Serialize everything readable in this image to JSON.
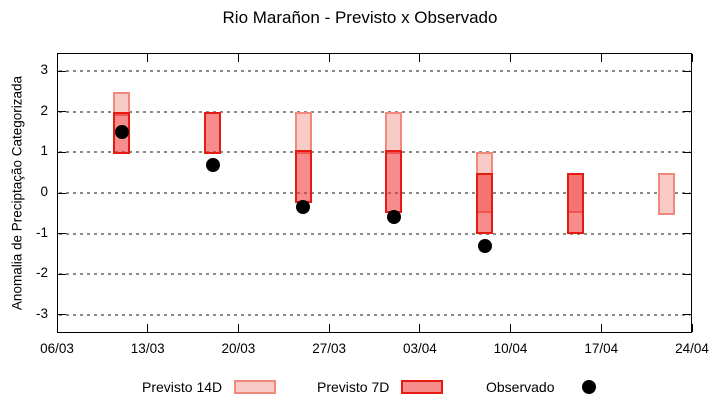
{
  "chart_data": {
    "type": "bar",
    "title": "Rio Marañon - Previsto x Observado",
    "ylabel": "Anomalia de Preciptação Categorizada",
    "xlabel": "",
    "ylim": [
      -3.45,
      3.45
    ],
    "yticks": [
      3,
      2,
      1,
      0,
      -1,
      -2,
      -3
    ],
    "x_total_days": 49,
    "xticks": [
      {
        "label": "06/03",
        "day": 0
      },
      {
        "label": "13/03",
        "day": 7
      },
      {
        "label": "20/03",
        "day": 14
      },
      {
        "label": "27/03",
        "day": 21
      },
      {
        "label": "03/04",
        "day": 28
      },
      {
        "label": "10/04",
        "day": 35
      },
      {
        "label": "17/04",
        "day": 42
      },
      {
        "label": "24/04",
        "day": 49
      }
    ],
    "grid": "horizontal-dashed",
    "legend_position": "bottom",
    "series": [
      {
        "name": "Previsto 14D",
        "type": "range-bar",
        "points": [
          {
            "day": 5,
            "low": 1.95,
            "high": 2.45
          },
          {
            "day": 19,
            "low": 1.0,
            "high": 1.95
          },
          {
            "day": 26,
            "low": 1.0,
            "high": 1.95
          },
          {
            "day": 33,
            "low": -0.45,
            "high": 0.95
          },
          {
            "day": 40,
            "low": -0.45,
            "high": 0.45
          },
          {
            "day": 47,
            "low": -0.5,
            "high": 0.45
          }
        ]
      },
      {
        "name": "Previsto 7D",
        "type": "range-bar",
        "points": [
          {
            "day": 5,
            "low": 1.0,
            "high": 1.95
          },
          {
            "day": 12,
            "low": 1.0,
            "high": 1.95
          },
          {
            "day": 19,
            "low": -0.2,
            "high": 1.0
          },
          {
            "day": 26,
            "low": -0.45,
            "high": 1.0
          },
          {
            "day": 33,
            "low": -0.95,
            "high": 0.45
          },
          {
            "day": 40,
            "low": -0.95,
            "high": 0.45
          }
        ]
      },
      {
        "name": "Observado",
        "type": "scatter",
        "points": [
          {
            "day": 5,
            "value": 1.5
          },
          {
            "day": 12,
            "value": 0.7
          },
          {
            "day": 19,
            "value": -0.35
          },
          {
            "day": 26,
            "value": -0.6
          },
          {
            "day": 33,
            "value": -1.3
          }
        ]
      }
    ],
    "colors": {
      "p14_fill": "#f9cbc7",
      "p14_border": "#f0887c",
      "p7_fill": "rgba(240,45,45,0.55)",
      "p7_border": "#e51b12",
      "observed": "#000000",
      "grid": "#8a8a8a",
      "axis": "#000000",
      "background": "#ffffff"
    }
  }
}
